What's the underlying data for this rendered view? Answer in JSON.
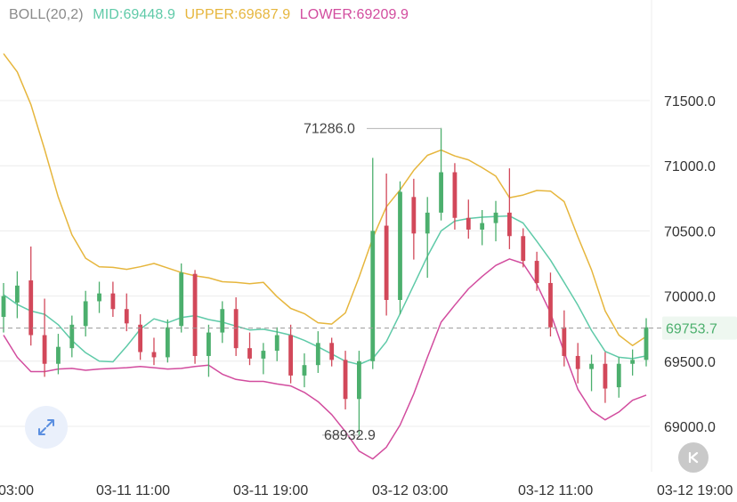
{
  "legend": {
    "indicator": "BOLL(20,2)",
    "mid": "MID:69448.9",
    "upper": "UPPER:69687.9",
    "lower": "LOWER:69209.9"
  },
  "icons": {
    "expand": "expand-arrows-icon",
    "back": "chevron-left-end-icon"
  },
  "colors": {
    "up": "#4caf6d",
    "down": "#d2485a",
    "mid": "#5fcaa8",
    "upper": "#e6b63d",
    "lower": "#d24c9e",
    "grid": "#ececec",
    "axis_text": "#333333",
    "price_tag": "#4caf6d"
  },
  "chart_data": {
    "type": "candlestick",
    "indicator": "BOLL(20,2)",
    "y_axis": {
      "ticks": [
        69000.0,
        69500.0,
        70000.0,
        70500.0,
        71000.0,
        71500.0
      ],
      "tick_labels": [
        "69000.0",
        "69500.0",
        "70000.0",
        "70500.0",
        "71000.0",
        "71500.0"
      ],
      "position": "right"
    },
    "x_axis": {
      "tick_labels": [
        "03:00",
        "03-11 11:00",
        "03-11 19:00",
        "03-12 03:00",
        "03-12 11:00",
        "03-12 19:00"
      ]
    },
    "current_price": 69753.7,
    "current_price_label": "69753.7",
    "annotations": [
      {
        "label": "71286.0",
        "value": 71286.0
      },
      {
        "label": "68932.9",
        "value": 68932.9
      }
    ],
    "series": [
      {
        "name": "MID",
        "values": [
          70010,
          69935,
          69885,
          69860,
          69780,
          69660,
          69565,
          69500,
          69495,
          69615,
          69745,
          69825,
          69795,
          69835,
          69850,
          69820,
          69800,
          69770,
          69740,
          69745,
          69725,
          69700,
          69660,
          69610,
          69555,
          69500,
          69475,
          69520,
          69650,
          69865,
          70085,
          70305,
          70500,
          70575,
          70595,
          70605,
          70610,
          70615,
          70560,
          70420,
          70275,
          70105,
          69930,
          69735,
          69575,
          69530,
          69520,
          69540
        ]
      },
      {
        "name": "UPPER",
        "values": [
          71860,
          71720,
          71470,
          71125,
          70760,
          70470,
          70290,
          70225,
          70220,
          70205,
          70225,
          70250,
          70215,
          70180,
          70155,
          70140,
          70110,
          70105,
          70095,
          70105,
          69995,
          69905,
          69865,
          69795,
          69785,
          69870,
          70145,
          70445,
          70685,
          70815,
          70965,
          71080,
          71120,
          71075,
          71045,
          70985,
          70920,
          70755,
          70775,
          70810,
          70805,
          70725,
          70455,
          70200,
          69885,
          69700,
          69620,
          69690
        ]
      },
      {
        "name": "LOWER",
        "values": [
          69700,
          69530,
          69420,
          69420,
          69440,
          69445,
          69430,
          69440,
          69445,
          69450,
          69460,
          69450,
          69440,
          69445,
          69460,
          69470,
          69400,
          69360,
          69345,
          69345,
          69325,
          69310,
          69260,
          69190,
          69090,
          68960,
          68810,
          68750,
          68840,
          69010,
          69250,
          69530,
          69800,
          69930,
          70055,
          70150,
          70235,
          70285,
          70250,
          70090,
          69870,
          69570,
          69285,
          69120,
          69050,
          69110,
          69200,
          69240
        ]
      },
      {
        "name": "candles",
        "ohlc": [
          [
            69840,
            70100,
            69720,
            70000
          ],
          [
            69950,
            70190,
            69830,
            70080
          ],
          [
            70120,
            70380,
            69620,
            69700
          ],
          [
            69700,
            69980,
            69380,
            69480
          ],
          [
            69480,
            69710,
            69400,
            69610
          ],
          [
            69600,
            69850,
            69530,
            69780
          ],
          [
            69770,
            70040,
            69690,
            69960
          ],
          [
            69960,
            70110,
            69870,
            70020
          ],
          [
            70020,
            70110,
            69840,
            69900
          ],
          [
            69900,
            70020,
            69730,
            69790
          ],
          [
            69780,
            69860,
            69510,
            69570
          ],
          [
            69570,
            69680,
            69470,
            69530
          ],
          [
            69530,
            69820,
            69490,
            69760
          ],
          [
            69770,
            70250,
            69720,
            70180
          ],
          [
            70170,
            70200,
            69480,
            69540
          ],
          [
            69540,
            69780,
            69380,
            69720
          ],
          [
            69720,
            69960,
            69640,
            69900
          ],
          [
            69900,
            69990,
            69540,
            69600
          ],
          [
            69600,
            69720,
            69470,
            69520
          ],
          [
            69520,
            69640,
            69400,
            69580
          ],
          [
            69580,
            69760,
            69500,
            69700
          ],
          [
            69700,
            69780,
            69330,
            69390
          ],
          [
            69390,
            69560,
            69300,
            69470
          ],
          [
            69470,
            69730,
            69410,
            69640
          ],
          [
            69640,
            69680,
            69460,
            69510
          ],
          [
            69510,
            69580,
            69130,
            69210
          ],
          [
            69210,
            69580,
            68930,
            69500
          ],
          [
            69500,
            71060,
            69440,
            70500
          ],
          [
            70540,
            70940,
            69850,
            69970
          ],
          [
            69970,
            70880,
            69860,
            70800
          ],
          [
            70760,
            70900,
            70280,
            70480
          ],
          [
            70480,
            70760,
            70140,
            70640
          ],
          [
            70640,
            71290,
            70580,
            70950
          ],
          [
            70950,
            71020,
            70510,
            70600
          ],
          [
            70600,
            70740,
            70440,
            70510
          ],
          [
            70510,
            70660,
            70390,
            70560
          ],
          [
            70560,
            70730,
            70420,
            70640
          ],
          [
            70640,
            70980,
            70360,
            70460
          ],
          [
            70460,
            70520,
            70220,
            70270
          ],
          [
            70270,
            70340,
            70040,
            70100
          ],
          [
            70100,
            70180,
            69690,
            69760
          ],
          [
            69760,
            69890,
            69460,
            69540
          ],
          [
            69540,
            69640,
            69330,
            69440
          ],
          [
            69440,
            69550,
            69270,
            69480
          ],
          [
            69480,
            69570,
            69180,
            69290
          ],
          [
            69300,
            69530,
            69220,
            69480
          ],
          [
            69480,
            69590,
            69390,
            69510
          ],
          [
            69510,
            69830,
            69460,
            69760
          ]
        ]
      }
    ]
  }
}
